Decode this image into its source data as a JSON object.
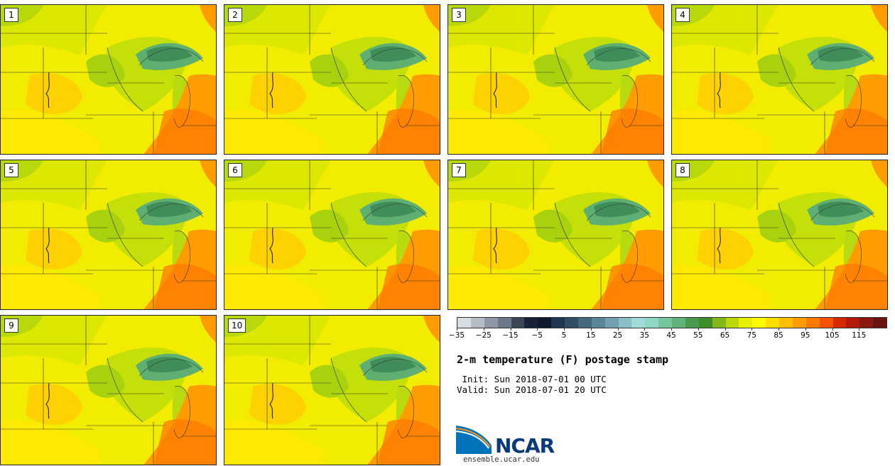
{
  "panels": [
    {
      "label": "1"
    },
    {
      "label": "2"
    },
    {
      "label": "3"
    },
    {
      "label": "4"
    },
    {
      "label": "5"
    },
    {
      "label": "6"
    },
    {
      "label": "7"
    },
    {
      "label": "8"
    },
    {
      "label": "9"
    },
    {
      "label": "10"
    }
  ],
  "colorbar": {
    "colors": [
      "#d8dde3",
      "#b4bcc6",
      "#8d97a6",
      "#6c778a",
      "#3a4656",
      "#17213a",
      "#0e1a2e",
      "#20354e",
      "#2f4e66",
      "#44697f",
      "#5b8598",
      "#73a0b0",
      "#8bbdc7",
      "#a2dad9",
      "#8ed7c2",
      "#74c79d",
      "#5fb27a",
      "#4a9a4e",
      "#3f8e2c",
      "#84b817",
      "#bcd80a",
      "#e9ef00",
      "#fffb00",
      "#ffdd00",
      "#ffbf00",
      "#ff9d00",
      "#ff7a00",
      "#f45100",
      "#d62a00",
      "#b21a0a",
      "#8a180f",
      "#6a140f"
    ],
    "ticks": [
      "−35",
      "−25",
      "−15",
      "−5",
      "5",
      "15",
      "25",
      "35",
      "45",
      "55",
      "65",
      "75",
      "85",
      "95",
      "105",
      "115"
    ]
  },
  "title": "2-m temperature (F) postage stamp",
  "init": " Init: Sun 2018-07-01 00 UTC",
  "valid": "Valid: Sun 2018-07-01 20 UTC",
  "logo": {
    "text": "NCAR",
    "site": "ensemble.ucar.edu",
    "colors": [
      "#0072bc",
      "#f7941d"
    ]
  }
}
